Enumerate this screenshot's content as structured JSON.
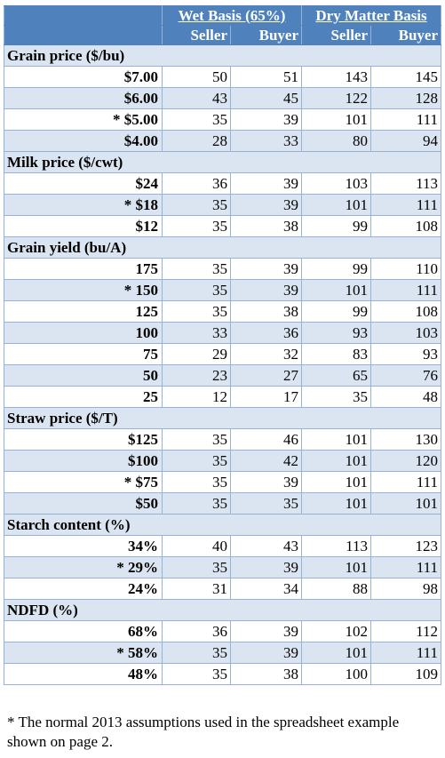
{
  "header": {
    "wet_basis": "Wet Basis (65%)",
    "dry_basis": "Dry Matter Basis",
    "sub": [
      "Seller",
      "Buyer",
      "Seller",
      "Buyer"
    ]
  },
  "sections": [
    {
      "title": "Grain price ($/bu)",
      "rows": [
        {
          "label": "$7.00",
          "values": [
            "50",
            "51",
            "143",
            "145"
          ]
        },
        {
          "label": "$6.00",
          "values": [
            "43",
            "45",
            "122",
            "128"
          ]
        },
        {
          "label": "* $5.00",
          "values": [
            "35",
            "39",
            "101",
            "111"
          ]
        },
        {
          "label": "$4.00",
          "values": [
            "28",
            "33",
            "80",
            "94"
          ]
        }
      ]
    },
    {
      "title": "Milk price ($/cwt)",
      "rows": [
        {
          "label": "$24",
          "values": [
            "36",
            "39",
            "103",
            "113"
          ]
        },
        {
          "label": "* $18",
          "values": [
            "35",
            "39",
            "101",
            "111"
          ]
        },
        {
          "label": "$12",
          "values": [
            "35",
            "38",
            "99",
            "108"
          ]
        }
      ]
    },
    {
      "title": "Grain yield (bu/A)",
      "rows": [
        {
          "label": "175",
          "values": [
            "35",
            "39",
            "99",
            "110"
          ]
        },
        {
          "label": "* 150",
          "values": [
            "35",
            "39",
            "101",
            "111"
          ]
        },
        {
          "label": "125",
          "values": [
            "35",
            "38",
            "99",
            "108"
          ]
        },
        {
          "label": "100",
          "values": [
            "33",
            "36",
            "93",
            "103"
          ]
        },
        {
          "label": "75",
          "values": [
            "29",
            "32",
            "83",
            "93"
          ]
        },
        {
          "label": "50",
          "values": [
            "23",
            "27",
            "65",
            "76"
          ]
        },
        {
          "label": "25",
          "values": [
            "12",
            "17",
            "35",
            "48"
          ]
        }
      ]
    },
    {
      "title": "Straw price ($/T)",
      "rows": [
        {
          "label": "$125",
          "values": [
            "35",
            "46",
            "101",
            "130"
          ]
        },
        {
          "label": "$100",
          "values": [
            "35",
            "42",
            "101",
            "120"
          ]
        },
        {
          "label": "* $75",
          "values": [
            "35",
            "39",
            "101",
            "111"
          ]
        },
        {
          "label": "$50",
          "values": [
            "35",
            "35",
            "101",
            "101"
          ]
        }
      ]
    },
    {
      "title": "Starch content (%)",
      "rows": [
        {
          "label": "34%",
          "values": [
            "40",
            "43",
            "113",
            "123"
          ]
        },
        {
          "label": "* 29%",
          "values": [
            "35",
            "39",
            "101",
            "111"
          ]
        },
        {
          "label": "24%",
          "values": [
            "31",
            "34",
            "88",
            "98"
          ]
        }
      ]
    },
    {
      "title": "NDFD (%)",
      "rows": [
        {
          "label": "68%",
          "values": [
            "36",
            "39",
            "102",
            "112"
          ]
        },
        {
          "label": "* 58%",
          "values": [
            "35",
            "39",
            "101",
            "111"
          ]
        },
        {
          "label": "48%",
          "values": [
            "35",
            "38",
            "100",
            "109"
          ]
        }
      ]
    }
  ],
  "footnote": "* The normal 2013 assumptions used in the spreadsheet example shown on page 2.",
  "colors": {
    "header": "#4f81bd",
    "shade": "#dbe5f1",
    "border": "#95b3d7"
  }
}
